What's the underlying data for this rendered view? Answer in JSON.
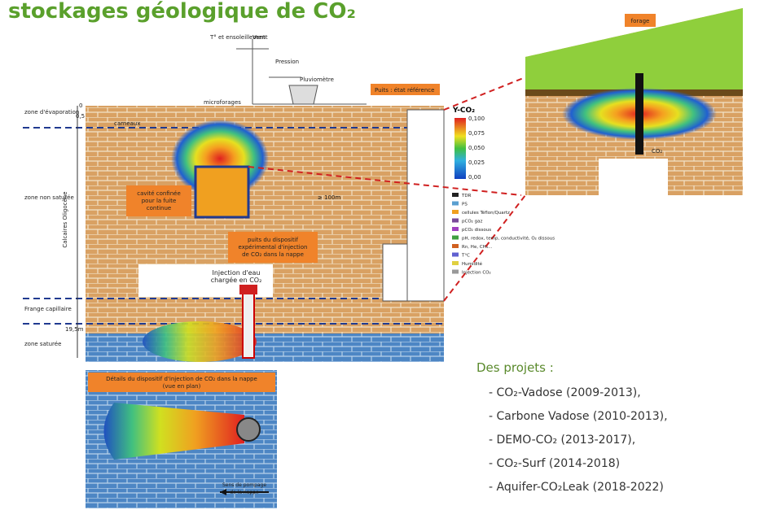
{
  "title": "stockages géologique de CO₂",
  "instruments": {
    "temp": "T° et ensoleillement",
    "wind": "Vent",
    "pressure": "Pression",
    "rain": "Pluviomètre",
    "microwells": "microforages",
    "well_ref": "Puits : état référence"
  },
  "zoom": {
    "label": "forage",
    "bottom": "CO₂"
  },
  "profile": {
    "depth_top": "0",
    "depth_mid": "0,5",
    "depth_bottom": "19,5m",
    "zones": [
      "zone d'évaporation",
      "zone non saturée",
      "Frange capillaire",
      "zone saturée"
    ],
    "formation": "Calcaires Oligocène",
    "carneaux": "carneaux",
    "distance": "≥ 100m"
  },
  "boxes": {
    "cavity": [
      "cavité confinée",
      "pour la fuite",
      "continue"
    ],
    "injection_well": [
      "puits du dispositif",
      "expérimental d'injection",
      "de CO₂ dans la nappe"
    ],
    "water_injection": [
      "Injection d'eau",
      "chargée en CO₂"
    ]
  },
  "colorbar": {
    "title": "Y-CO₂",
    "ticks": [
      "0,100",
      "0,075",
      "0,050",
      "0,025",
      "0,00"
    ]
  },
  "legend": [
    "TDR",
    "PS",
    "cellules Téflon/Quartz",
    "pCO₂ gaz",
    "pCO₂ dissous",
    "pH, redox, temp, conductivité, O₂ dissous",
    "Rn, He, CH₄...",
    "T°C",
    "Humidité",
    "Injection CO₂"
  ],
  "inset": {
    "title": [
      "Détails du dispositif d'injection de CO₂ dans la nappe",
      "(vue en plan)"
    ],
    "flow": [
      "Sens de pompage",
      "de la nappe"
    ]
  },
  "projects": {
    "heading": "Des projets :",
    "items": [
      "- CO₂-Vadose (2009-2013),",
      "- Carbone Vadose (2010-2013),",
      "- DEMO-CO₂ (2013-2017),",
      "- CO₂-Surf (2014-2018)",
      "- Aquifer-CO₂Leak (2018-2022)"
    ]
  }
}
